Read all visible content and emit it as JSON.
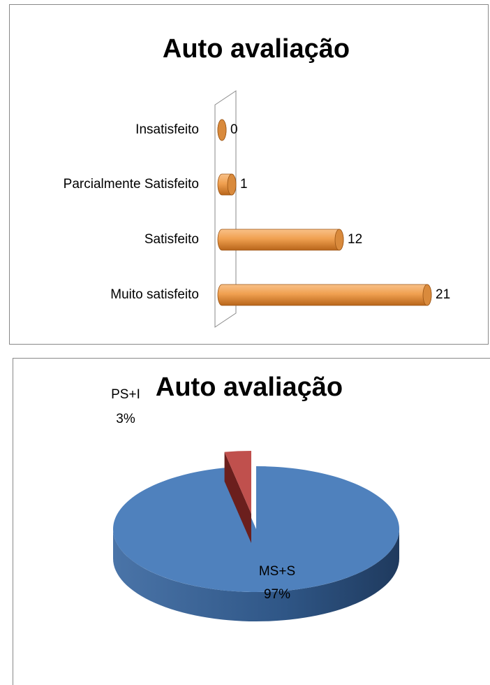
{
  "chart_data": [
    {
      "type": "bar3d",
      "title": "Auto avaliação",
      "categories": [
        "Insatisfeito",
        "Parcialmente Satisfeito",
        "Satisfeito",
        "Muito satisfeito"
      ],
      "values": [
        0,
        1,
        12,
        21
      ],
      "color": "#f0a050",
      "xlim": [
        0,
        24
      ]
    },
    {
      "type": "pie3d",
      "title": "Auto avaliação",
      "categories": [
        "MS+S",
        "PS+I"
      ],
      "values": [
        97,
        3
      ],
      "value_labels": [
        "97%",
        "3%"
      ],
      "colors": [
        "#4f81bd",
        "#c0504d"
      ]
    }
  ]
}
